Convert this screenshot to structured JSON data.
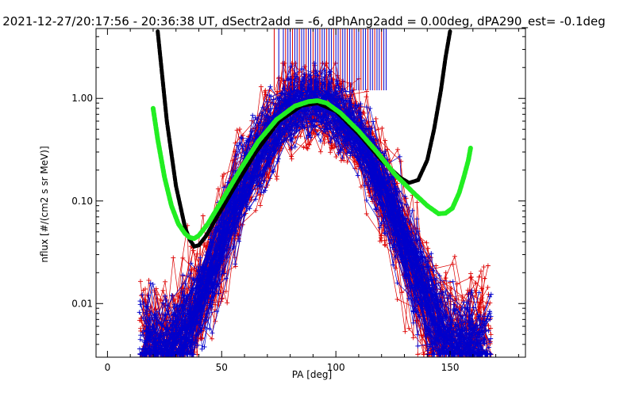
{
  "chart_data": {
    "type": "scatter",
    "title": "2021-12-27/20:17:56 - 20:36:38 UT, dSectr2add = -6, dPhAng2add = 0.00deg, dPA290_est=  -0.1deg",
    "xlabel": "PA [deg]",
    "ylabel": "nflux [#/(cm2 s sr MeV)]",
    "xlim": [
      -5,
      183
    ],
    "ylim": [
      0.003,
      4.8
    ],
    "yscale": "log",
    "xticks": [
      {
        "value": 0,
        "label": "0"
      },
      {
        "value": 50,
        "label": "50"
      },
      {
        "value": 100,
        "label": "100"
      },
      {
        "value": 150,
        "label": "150"
      }
    ],
    "yticks": [
      {
        "value": 0.01,
        "label": "0.01"
      },
      {
        "value": 0.1,
        "label": "0.10"
      },
      {
        "value": 1.0,
        "label": "1.00"
      }
    ],
    "series": [
      {
        "type": "dashed-line",
        "color": "#000000",
        "x": [
          22,
          26,
          30,
          34,
          36,
          38,
          40,
          43,
          48,
          55,
          65,
          75,
          85,
          92,
          100,
          110,
          120,
          128,
          132,
          136,
          140,
          143,
          146,
          148,
          150
        ],
        "y": [
          4.5,
          0.6,
          0.14,
          0.055,
          0.042,
          0.036,
          0.037,
          0.045,
          0.07,
          0.13,
          0.3,
          0.6,
          0.85,
          0.9,
          0.75,
          0.45,
          0.25,
          0.17,
          0.15,
          0.16,
          0.25,
          0.5,
          1.2,
          2.5,
          4.5
        ]
      },
      {
        "type": "dotted-line",
        "color": "#22ee22",
        "x": [
          20,
          22,
          25,
          28,
          31,
          34,
          36,
          38,
          40,
          44,
          50,
          58,
          66,
          74,
          82,
          88,
          92,
          96,
          102,
          110,
          118,
          126,
          134,
          140,
          145,
          148,
          151,
          154,
          156,
          158,
          159
        ],
        "y": [
          0.8,
          0.4,
          0.17,
          0.09,
          0.06,
          0.048,
          0.044,
          0.043,
          0.046,
          0.06,
          0.1,
          0.2,
          0.38,
          0.62,
          0.84,
          0.93,
          0.95,
          0.9,
          0.72,
          0.48,
          0.3,
          0.18,
          0.12,
          0.09,
          0.075,
          0.076,
          0.085,
          0.12,
          0.17,
          0.25,
          0.33
        ]
      }
    ],
    "scatter_series": [
      {
        "color": "#0000cc",
        "marker": "+",
        "connected": true
      },
      {
        "color": "#dd0000",
        "marker": "+",
        "connected": true
      }
    ],
    "vertical_lines_note": "vertical red and blue lines above the y = 1.2 level between PA 73 and 122",
    "vertical_lines_x": [
      73,
      75,
      77,
      78,
      79,
      80,
      81,
      82,
      83,
      84,
      85,
      86,
      87,
      88,
      89,
      90,
      91,
      92,
      93,
      94,
      95,
      96,
      97,
      98,
      99,
      100,
      101,
      102,
      103,
      104,
      105,
      106,
      107,
      108,
      109,
      110,
      111,
      112,
      113,
      114,
      115,
      116,
      117,
      118,
      119,
      120,
      121,
      122
    ],
    "vertical_lines_from": 1.2,
    "vertical_lines_to": 4.8,
    "grid": false
  }
}
